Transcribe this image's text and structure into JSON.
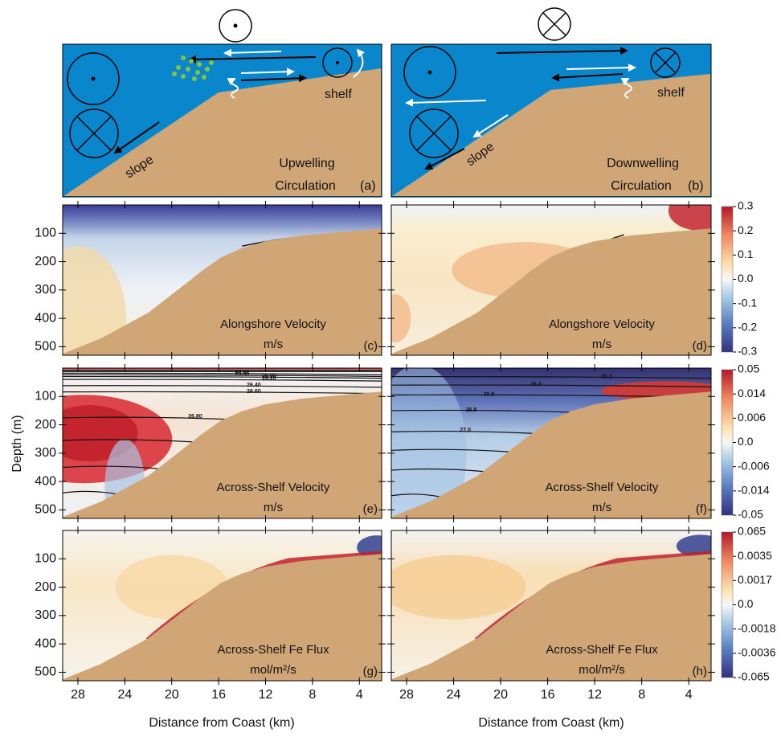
{
  "figure": {
    "x_label": "Distance from Coast (km)",
    "y_label": "Depth (m)",
    "xlim": [
      29.3,
      2.1
    ],
    "ylim": [
      0,
      530
    ],
    "xticks": [
      28,
      24,
      20,
      16,
      12,
      8,
      4
    ],
    "yticks": [
      100,
      200,
      300,
      400,
      500
    ]
  },
  "schematics": [
    {
      "title_lines": [
        "Upwelling",
        "Circulation"
      ],
      "label": "(a)",
      "shelf": "shelf",
      "slope": "slope"
    },
    {
      "title_lines": [
        "Downwelling",
        "Circulation"
      ],
      "label": "(b)",
      "shelf": "shelf",
      "slope": "slope"
    }
  ],
  "panels": [
    {
      "title": "Alongshore Velocity",
      "units": "m/s",
      "label": "(c)"
    },
    {
      "title": "Alongshore Velocity",
      "units": "m/s",
      "label": "(d)"
    },
    {
      "title": "Across-Shelf Velocity",
      "units": "m/s",
      "label": "(e)",
      "contour_labels": [
        "26.80",
        "26.80",
        "26.00",
        "26.20",
        "26.40",
        "26.60",
        "26.80"
      ]
    },
    {
      "title": "Across-Shelf Velocity",
      "units": "m/s",
      "label": "(f)",
      "contour_labels": [
        "26.2",
        "26.4",
        "26.6",
        "26.8",
        "27.0"
      ]
    },
    {
      "title": "Across-Shelf Fe Flux",
      "units": "mol/m²/s",
      "label": "(g)"
    },
    {
      "title": "Across-Shelf Fe Flux",
      "units": "mol/m²/s",
      "label": "(h)"
    }
  ],
  "colorbars": [
    {
      "ticks": [
        0.3,
        0.2,
        0.1,
        {
          "value": 0,
          "label": "0.0"
        },
        -0.1,
        -0.2,
        -0.3
      ]
    },
    {
      "ticks": [
        0.05,
        0.014,
        0.006,
        {
          "value": 0,
          "label": "0.0"
        },
        -0.006,
        -0.014,
        -0.05
      ]
    },
    {
      "ticks": [
        0.065,
        0.0035,
        0.0017,
        {
          "value": 0,
          "label": "0.0"
        },
        -0.0018,
        -0.0036,
        -0.065
      ]
    }
  ]
}
